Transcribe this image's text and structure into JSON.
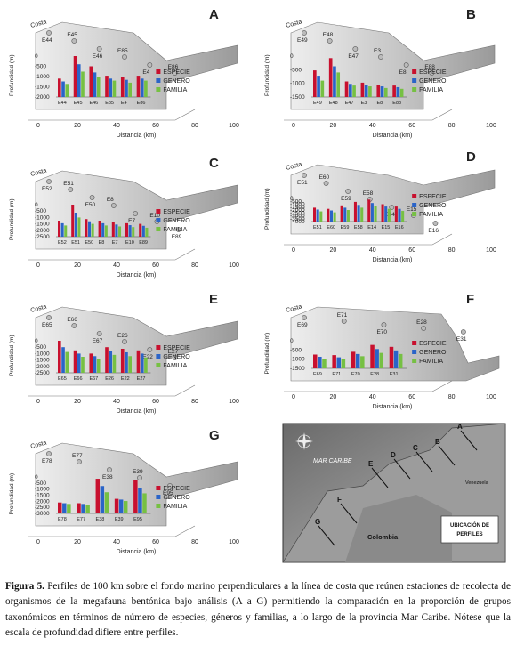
{
  "legend": {
    "especie": "ESPECIE",
    "genero": "GENERO",
    "familia": "FAMILIA"
  },
  "colors": {
    "especie": "#c8102e",
    "genero": "#2a64c8",
    "familia": "#76c043"
  },
  "axes": {
    "costa": "Costa",
    "xlabel": "Distancia (km)",
    "ylabel": "Profundidad (m)"
  },
  "panels": [
    {
      "id": "A",
      "stations": [
        "E44",
        "E45",
        "E46",
        "E85",
        "E4",
        "E86"
      ],
      "xlabel": "Distancia (km)",
      "ylim": [
        -2000,
        0
      ],
      "yticks": [
        "0",
        "-500",
        "-1000",
        "-1500",
        "-2000"
      ],
      "xticks": [
        "0",
        "20",
        "40",
        "60",
        "80",
        "100"
      ],
      "values": {
        "especie": [
          45,
          100,
          75,
          52,
          48,
          52
        ],
        "genero": [
          38,
          80,
          60,
          45,
          42,
          45
        ],
        "familia": [
          32,
          62,
          50,
          40,
          35,
          40
        ]
      }
    },
    {
      "id": "B",
      "stations": [
        "E49",
        "E48",
        "E47",
        "E3",
        "E8",
        "E88"
      ],
      "xlabel": "Distancia (km)",
      "ylim": [
        -1500,
        0
      ],
      "yticks": [
        "0",
        "-500",
        "-1000",
        "-1500"
      ],
      "xticks": [
        "0",
        "20",
        "40",
        "60",
        "80",
        "100"
      ],
      "values": {
        "especie": [
          65,
          95,
          38,
          35,
          30,
          28
        ],
        "genero": [
          52,
          75,
          32,
          30,
          26,
          24
        ],
        "familia": [
          40,
          60,
          28,
          26,
          22,
          20
        ]
      }
    },
    {
      "id": "C",
      "stations": [
        "E52",
        "E51",
        "E50",
        "E8",
        "E7",
        "E10",
        "E89"
      ],
      "xlabel": "Distancia (km)",
      "ylim": [
        -2500,
        0
      ],
      "yticks": [
        "0",
        "-500",
        "-1000",
        "-1500",
        "-2000",
        "-2500"
      ],
      "xticks": [
        "0",
        "20",
        "40",
        "60",
        "80",
        "100"
      ],
      "values": {
        "especie": [
          50,
          100,
          55,
          50,
          45,
          42,
          40
        ],
        "genero": [
          42,
          75,
          48,
          42,
          38,
          36,
          34
        ],
        "familia": [
          35,
          60,
          40,
          35,
          32,
          30,
          28
        ]
      }
    },
    {
      "id": "D",
      "stations": [
        "E51",
        "E60",
        "E59",
        "E58",
        "E14",
        "E15",
        "E16"
      ],
      "xlabel": "Distancia (km)",
      "ylim": [
        -4000,
        0
      ],
      "yticks": [
        "0",
        "-500",
        "-1000",
        "-1500",
        "-2000",
        "-2500",
        "-3000",
        "-3500",
        "-4000"
      ],
      "xticks": [
        "0",
        "20",
        "40",
        "60",
        "80",
        "100"
      ],
      "values": {
        "especie": [
          60,
          55,
          70,
          85,
          95,
          75,
          65
        ],
        "genero": [
          52,
          48,
          60,
          72,
          80,
          65,
          55
        ],
        "familia": [
          44,
          40,
          50,
          60,
          68,
          55,
          46
        ]
      }
    },
    {
      "id": "E",
      "stations": [
        "E65",
        "E66",
        "E67",
        "E26",
        "E22",
        "E27"
      ],
      "xlabel": "Distancia (km)",
      "ylim": [
        -2500,
        0
      ],
      "yticks": [
        "0",
        "-500",
        "-1000",
        "-1500",
        "-2000",
        "-2500"
      ],
      "xticks": [
        "0",
        "20",
        "40",
        "60",
        "80",
        "100"
      ],
      "values": {
        "especie": [
          100,
          70,
          60,
          80,
          75,
          70
        ],
        "genero": [
          80,
          60,
          52,
          68,
          64,
          60
        ],
        "familia": [
          65,
          50,
          44,
          56,
          52,
          48
        ]
      }
    },
    {
      "id": "F",
      "stations": [
        "E69",
        "E71",
        "E70",
        "E28",
        "E31"
      ],
      "xlabel": "Distancia (km)",
      "ylim": [
        -1500,
        0
      ],
      "yticks": [
        "0",
        "-500",
        "-1000",
        "-1500"
      ],
      "xticks": [
        "0",
        "20",
        "40",
        "60",
        "80",
        "100"
      ],
      "values": {
        "especie": [
          50,
          48,
          60,
          85,
          78
        ],
        "genero": [
          42,
          40,
          52,
          70,
          65
        ],
        "familia": [
          35,
          34,
          44,
          56,
          52
        ]
      }
    },
    {
      "id": "G",
      "stations": [
        "E78",
        "E77",
        "E38",
        "E39",
        "E95"
      ],
      "xlabel": "Distancia (km)",
      "ylim": [
        -3000,
        0
      ],
      "yticks": [
        "0",
        "-500",
        "-1000",
        "-1500",
        "-2000",
        "-2500",
        "-3000"
      ],
      "xticks": [
        "0",
        "20",
        "40",
        "60",
        "80",
        "100"
      ],
      "values": {
        "especie": [
          30,
          28,
          95,
          40,
          92
        ],
        "genero": [
          28,
          26,
          75,
          38,
          70
        ],
        "familia": [
          26,
          24,
          58,
          34,
          55
        ]
      }
    }
  ],
  "map": {
    "sea_label": "MAR CARIBE",
    "country": "Colombia",
    "venezuela": "Venezuela",
    "box_title": "UBICACIÓN DE PERFILES",
    "profile_letters": [
      "A",
      "B",
      "C",
      "D",
      "E",
      "F",
      "G"
    ]
  },
  "caption": {
    "label": "Figura 5.",
    "text": " Perfiles de 100 km sobre el fondo marino perpendiculares a la línea de costa que reúnen estaciones de recolecta de organismos de la megafauna bentónica bajo análisis (A a G) permitiendo la comparación en la proporción de grupos taxonómicos en términos de número de especies, géneros y familias, a lo largo de la provincia Mar Caribe.  Nótese que la escala de profundidad difiere entre perfiles."
  }
}
